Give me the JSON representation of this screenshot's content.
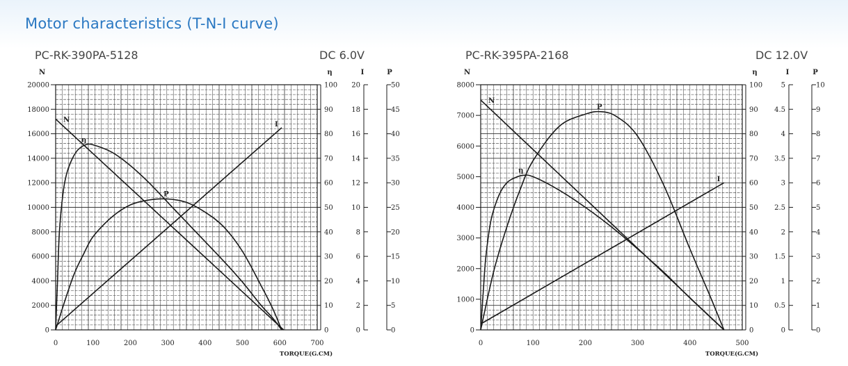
{
  "page": {
    "title": "Motor characteristics (T-N-I curve)"
  },
  "colors": {
    "title": "#2a78c2",
    "ink": "#1a1a1a",
    "grid": "#333333"
  },
  "chart_data": [
    {
      "type": "line",
      "model": "PC-RK-390PA-5128",
      "voltage": "DC  6.0V",
      "xlabel": "TORQUE(G.CM)",
      "xlim": [
        0,
        700
      ],
      "x_ticks": [
        "0",
        "100",
        "200",
        "300",
        "400",
        "500",
        "600",
        "700"
      ],
      "axes": [
        {
          "key": "N",
          "label": "N",
          "lim": [
            0,
            20000
          ],
          "ticks": [
            "0",
            "2000",
            "4000",
            "6000",
            "8000",
            "10000",
            "12000",
            "14000",
            "16000",
            "18000",
            "20000"
          ]
        },
        {
          "key": "eta",
          "label": "η",
          "lim": [
            0,
            100
          ],
          "ticks": [
            "0",
            "10",
            "20",
            "30",
            "40",
            "50",
            "60",
            "70",
            "80",
            "90",
            "100"
          ]
        },
        {
          "key": "I",
          "label": "I",
          "lim": [
            0,
            20
          ],
          "ticks": [
            "0",
            "2",
            "4",
            "6",
            "8",
            "10",
            "12",
            "14",
            "16",
            "18",
            "20"
          ]
        },
        {
          "key": "P",
          "label": "P",
          "lim": [
            0,
            50
          ],
          "ticks": [
            "0",
            "5",
            "10",
            "15",
            "20",
            "25",
            "30",
            "35",
            "40",
            "45",
            "50"
          ]
        }
      ],
      "series": [
        {
          "name": "N",
          "axis": "N",
          "x": [
            0,
            610
          ],
          "y": [
            17200,
            0
          ]
        },
        {
          "name": "I",
          "axis": "I",
          "x": [
            0,
            605
          ],
          "y": [
            0.3,
            16.5
          ]
        },
        {
          "name": "η",
          "axis": "eta",
          "x": [
            0,
            5,
            10,
            20,
            30,
            45,
            60,
            80,
            100,
            150,
            200,
            250,
            300,
            350,
            400,
            450,
            500,
            550,
            580,
            605
          ],
          "y": [
            0,
            20,
            40,
            56,
            64,
            70,
            73.5,
            75.5,
            75.5,
            72.5,
            67,
            60,
            52,
            44,
            36,
            28,
            19.5,
            10,
            5,
            0
          ]
        },
        {
          "name": "P",
          "axis": "P",
          "x": [
            0,
            25,
            50,
            75,
            100,
            150,
            200,
            250,
            300,
            350,
            400,
            450,
            500,
            550,
            580,
            605
          ],
          "y": [
            0,
            6,
            11.5,
            15.5,
            19,
            23,
            25.5,
            26.5,
            26.7,
            26,
            24,
            21,
            16,
            9,
            4.5,
            0
          ]
        }
      ]
    },
    {
      "type": "line",
      "model": "PC-RK-395PA-2168",
      "voltage": "DC 12.0V",
      "xlabel": "TORQUE(G.CM)",
      "xlim": [
        0,
        500
      ],
      "x_ticks": [
        "0",
        "100",
        "200",
        "300",
        "400",
        "500"
      ],
      "axes": [
        {
          "key": "N",
          "label": "N",
          "lim": [
            0,
            8000
          ],
          "ticks": [
            "0",
            "1000",
            "2000",
            "3000",
            "4000",
            "5000",
            "6000",
            "7000",
            "8000"
          ]
        },
        {
          "key": "eta",
          "label": "η",
          "lim": [
            0,
            100
          ],
          "ticks": [
            "0",
            "10",
            "20",
            "30",
            "40",
            "50",
            "60",
            "70",
            "80",
            "90",
            "100"
          ]
        },
        {
          "key": "I",
          "label": "I",
          "lim": [
            0,
            5
          ],
          "ticks": [
            "0",
            "0.5",
            "1",
            "1.5",
            "2",
            "2.5",
            "3",
            "3.5",
            "4",
            "4.5",
            "5"
          ]
        },
        {
          "key": "P",
          "label": "P",
          "lim": [
            0,
            10
          ],
          "ticks": [
            "0",
            "1",
            "2",
            "3",
            "4",
            "5",
            "6",
            "7",
            "8",
            "9",
            "10"
          ]
        }
      ],
      "series": [
        {
          "name": "N",
          "axis": "N",
          "x": [
            0,
            465
          ],
          "y": [
            7500,
            0
          ]
        },
        {
          "name": "I",
          "axis": "I",
          "x": [
            0,
            465
          ],
          "y": [
            0.12,
            3.0
          ]
        },
        {
          "name": "η",
          "axis": "eta",
          "x": [
            0,
            5,
            10,
            20,
            35,
            50,
            65,
            80,
            100,
            150,
            200,
            250,
            300,
            350,
            400,
            440,
            465
          ],
          "y": [
            0,
            16,
            30,
            45,
            55,
            60,
            62,
            63,
            62.5,
            57,
            50,
            42,
            33,
            23.5,
            13,
            5,
            0
          ]
        },
        {
          "name": "P",
          "axis": "P",
          "x": [
            0,
            25,
            50,
            75,
            100,
            150,
            200,
            230,
            260,
            300,
            350,
            400,
            440,
            465
          ],
          "y": [
            0,
            2.4,
            4.2,
            5.7,
            6.9,
            8.3,
            8.8,
            8.9,
            8.7,
            7.9,
            5.9,
            3.3,
            1.3,
            0
          ]
        }
      ]
    }
  ]
}
